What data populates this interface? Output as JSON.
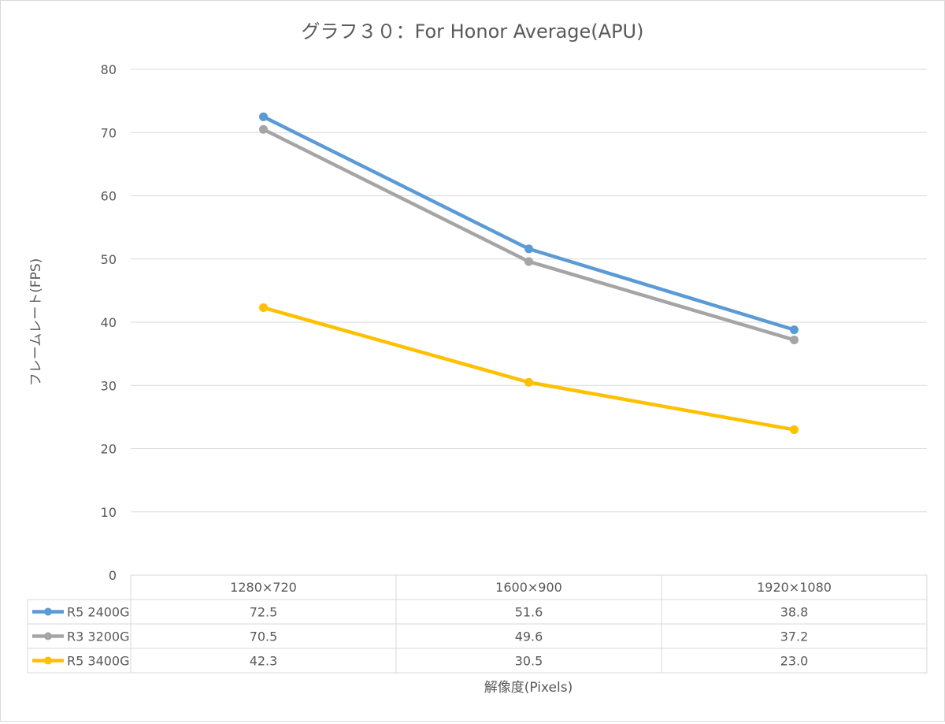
{
  "chart_data": {
    "type": "line",
    "title": "グラフ３０：For Honor Average(APU)",
    "xlabel": "解像度(Pixels)",
    "ylabel": "フレームレート(FPS)",
    "ylim": [
      0,
      80
    ],
    "yticks": [
      0,
      10,
      20,
      30,
      40,
      50,
      60,
      70,
      80
    ],
    "grid": true,
    "legend": "data-table",
    "categories": [
      "1280×720",
      "1600×900",
      "1920×1080"
    ],
    "series": [
      {
        "name": "R5 2400G",
        "color": "#5B9BD5",
        "values": [
          72.5,
          51.6,
          38.8
        ],
        "labels": [
          "72.5",
          "51.6",
          "38.8"
        ]
      },
      {
        "name": "R3 3200G",
        "color": "#A5A5A5",
        "values": [
          70.5,
          49.6,
          37.2
        ],
        "labels": [
          "70.5",
          "49.6",
          "37.2"
        ]
      },
      {
        "name": "R5 3400G",
        "color": "#FFC000",
        "values": [
          42.3,
          30.5,
          23.0
        ],
        "labels": [
          "42.3",
          "30.5",
          "23.0"
        ]
      }
    ]
  }
}
